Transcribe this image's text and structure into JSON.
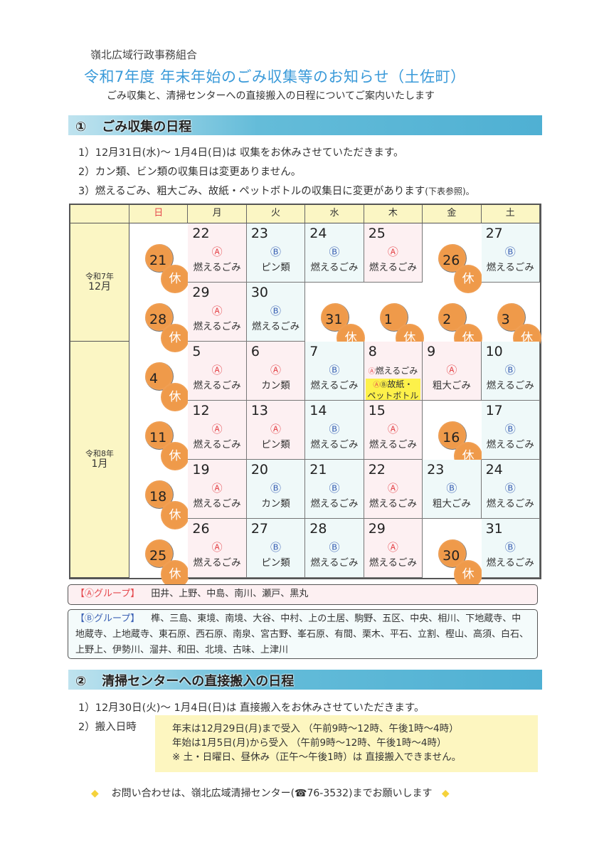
{
  "header": {
    "org": "嶺北広域行政事務組合",
    "title": "令和7年度 年末年始のごみ収集等のお知らせ（土佐町）",
    "subtitle": "ごみ収集と、清掃センターへの直接搬入の日程についてご案内いたします"
  },
  "section1": {
    "num": "①",
    "title": "ごみ収集の日程",
    "lines": [
      "1）12月31日(水)～ 1月4日(日)は 収集をお休みさせていただきます。",
      "2）カン類、ビン類の収集日は変更ありません。",
      "3）燃えるごみ、粗大ごみ、故紙・ペットボトルの収集日に変更があります"
    ],
    "line3_note": "(下表参照)。"
  },
  "calendar": {
    "weekdays": [
      "日",
      "月",
      "火",
      "水",
      "木",
      "金",
      "土"
    ],
    "months": [
      {
        "era": "令和7年",
        "month": "12月"
      },
      {
        "era": "令和8年",
        "month": "1月"
      }
    ],
    "off_label": "休",
    "symbols": {
      "A": "Ⓐ",
      "B": "Ⓑ"
    },
    "colors": {
      "A": "#e5484d",
      "B": "#3c62b5",
      "off": "#ef9a4a",
      "special": "#fdf14a"
    },
    "weeks": [
      [
        {
          "day": "21",
          "type": "off"
        },
        {
          "day": "22",
          "type": "A",
          "label": "燃えるごみ"
        },
        {
          "day": "23",
          "type": "B",
          "label": "ピン類"
        },
        {
          "day": "24",
          "type": "B",
          "label": "燃えるごみ"
        },
        {
          "day": "25",
          "type": "A",
          "label": "燃えるごみ"
        },
        {
          "day": "26",
          "type": "off"
        },
        {
          "day": "27",
          "type": "B",
          "label": "燃えるごみ"
        }
      ],
      [
        {
          "day": "28",
          "type": "off"
        },
        {
          "day": "29",
          "type": "A",
          "label": "燃えるごみ"
        },
        {
          "day": "30",
          "type": "B",
          "label": "燃えるごみ"
        },
        {
          "day": "31",
          "type": "off"
        },
        {
          "day": "1",
          "type": "off"
        },
        {
          "day": "2",
          "type": "off"
        },
        {
          "day": "3",
          "type": "off"
        }
      ],
      [
        {
          "day": "4",
          "type": "off"
        },
        {
          "day": "5",
          "type": "A",
          "label": "燃えるごみ"
        },
        {
          "day": "6",
          "type": "A",
          "label": "カン類"
        },
        {
          "day": "7",
          "type": "B",
          "label": "燃えるごみ"
        },
        {
          "day": "8",
          "type": "S",
          "label": "燃えるごみ",
          "label2": "故紙・",
          "label3": "ペットボトル"
        },
        {
          "day": "9",
          "type": "A",
          "label": "粗大ごみ"
        },
        {
          "day": "10",
          "type": "B",
          "label": "燃えるごみ"
        }
      ],
      [
        {
          "day": "11",
          "type": "off"
        },
        {
          "day": "12",
          "type": "A",
          "label": "燃えるごみ"
        },
        {
          "day": "13",
          "type": "A",
          "label": "ピン類"
        },
        {
          "day": "14",
          "type": "B",
          "label": "燃えるごみ"
        },
        {
          "day": "15",
          "type": "A",
          "label": "燃えるごみ"
        },
        {
          "day": "16",
          "type": "off"
        },
        {
          "day": "17",
          "type": "B",
          "label": "燃えるごみ"
        }
      ],
      [
        {
          "day": "18",
          "type": "off"
        },
        {
          "day": "19",
          "type": "A",
          "label": "燃えるごみ"
        },
        {
          "day": "20",
          "type": "B",
          "label": "カン類"
        },
        {
          "day": "21",
          "type": "B",
          "label": "燃えるごみ"
        },
        {
          "day": "22",
          "type": "A",
          "label": "燃えるごみ"
        },
        {
          "day": "23",
          "type": "B",
          "label": "粗大ごみ"
        },
        {
          "day": "24",
          "type": "B",
          "label": "燃えるごみ"
        }
      ],
      [
        {
          "day": "25",
          "type": "off"
        },
        {
          "day": "26",
          "type": "A",
          "label": "燃えるごみ"
        },
        {
          "day": "27",
          "type": "B",
          "label": "ピン類"
        },
        {
          "day": "28",
          "type": "B",
          "label": "燃えるごみ"
        },
        {
          "day": "29",
          "type": "A",
          "label": "燃えるごみ"
        },
        {
          "day": "30",
          "type": "off"
        },
        {
          "day": "31",
          "type": "B",
          "label": "燃えるごみ"
        }
      ]
    ]
  },
  "groups": {
    "A": {
      "label": "【Ⓐグループ】",
      "areas": "田井、上野、中島、南川、瀬戸、黒丸"
    },
    "B": {
      "label": "【Ⓑグループ】",
      "areas": "榫、三島、東境、南境、大谷、中村、上の土居、駒野、五区、中央、相川、下地蔵寺、中地蔵寺、上地蔵寺、東石原、西石原、南泉、宮古野、峯石原、有間、栗木、平石、立割、樫山、高須、白石、上野上、伊勢川、溜井、和田、北境、古味、上津川"
    }
  },
  "section2": {
    "num": "②",
    "title": "清掃センターへの直接搬入の日程",
    "line1": "1）12月30日(火)～ 1月4日(日)は 直接搬入をお休みさせていただきます。",
    "line2": "2）搬入日時",
    "box": [
      "年末は12月29日(月)まで受入 （午前9時～12時、午後1時～4時）",
      "年始は1月5日(月)から受入 （午前9時～12時、午後1時～4時）",
      "※ 土・日曜日、昼休み（正午～午後1時）は 直接搬入できません。"
    ]
  },
  "footer": {
    "text": "お問い合わせは、嶺北広域清掃センター(☎76-3532)までお願いします",
    "diamond": "◆"
  }
}
